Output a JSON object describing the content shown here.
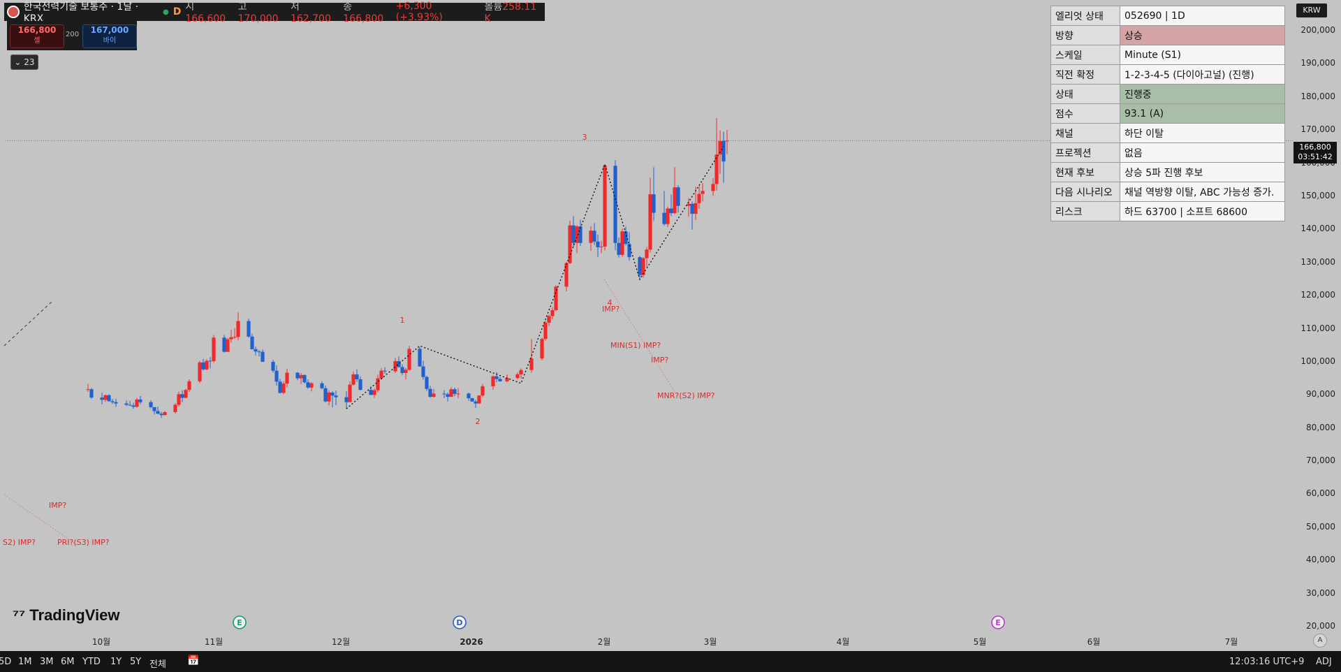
{
  "header": {
    "symbol": "한국전력기술 보통주 · 1날 · KRX",
    "interval_badge": "D",
    "open_label": "시",
    "open": "166,600",
    "high_label": "고",
    "high": "170,000",
    "low_label": "저",
    "low": "162,700",
    "close_label": "종",
    "close": "166,800",
    "change": "+6,300 (+3.93%)",
    "volume_label": "볼륨",
    "volume": "258.11 K"
  },
  "order_buttons": {
    "sell_price": "166,800",
    "sell_label": "셀",
    "qty": "200",
    "buy_price": "167,000",
    "buy_label": "바이"
  },
  "collapse": {
    "count": "23"
  },
  "info_table": [
    {
      "key": "엘리엇 상태",
      "value": "052690 | 1D",
      "tone": "plain"
    },
    {
      "key": "방향",
      "value": "상승",
      "tone": "red"
    },
    {
      "key": "스케일",
      "value": "Minute (S1)",
      "tone": "plain"
    },
    {
      "key": "직전 확정",
      "value": "1-2-3-4-5 (다이아고널) (진행)",
      "tone": "plain"
    },
    {
      "key": "상태",
      "value": "진행중",
      "tone": "green"
    },
    {
      "key": "점수",
      "value": "93.1 (A)",
      "tone": "green"
    },
    {
      "key": "채널",
      "value": "하단 이탈",
      "tone": "plain"
    },
    {
      "key": "프로젝션",
      "value": "없음",
      "tone": "plain"
    },
    {
      "key": "현재 후보",
      "value": "상승 5파 진행 후보",
      "tone": "plain"
    },
    {
      "key": "다음 시나리오",
      "value": "채널 역방향 이탈, ABC 가능성 증가.",
      "tone": "plain"
    },
    {
      "key": "리스크",
      "value": "하드 63700 | 소프트 68600",
      "tone": "plain"
    }
  ],
  "colors": {
    "up": "#f02a2a",
    "down": "#1f62cf",
    "tone_red": "#d4a3a5",
    "tone_green": "#a9bea6"
  },
  "price_scale": {
    "currency": "KRW",
    "ticks": [
      "200,000",
      "190,000",
      "180,000",
      "170,000",
      "160,000",
      "150,000",
      "140,000",
      "130,000",
      "120,000",
      "110,000",
      "100,000",
      "90,000",
      "80,000",
      "70,000",
      "60,000",
      "50,000",
      "40,000",
      "30,000",
      "20,000"
    ],
    "last_price": "166,800",
    "countdown": "03:51:42"
  },
  "time_axis": [
    "10월",
    "11월",
    "12월",
    "2026",
    "2월",
    "3월",
    "4월",
    "5월",
    "6월",
    "7월"
  ],
  "wave_labels": [
    "1",
    "2",
    "3",
    "4"
  ],
  "pattern_labels": [
    "IMP?",
    "MIN(S1) IMP?",
    "IMP?",
    "MNR?(S2) IMP?",
    "IMP?",
    "S2) IMP?",
    "PRI?(S3) IMP?"
  ],
  "event_markers": [
    "E",
    "D",
    "E"
  ],
  "brand": "TradingView",
  "bottom_bar": {
    "ranges": [
      "5D",
      "1M",
      "3M",
      "6M",
      "YTD",
      "1Y",
      "5Y",
      "전체"
    ],
    "clock": "12:03:16 UTC+9",
    "adj": "ADJ",
    "auto": "A"
  },
  "candles": [
    [
      "2025-08-28",
      91500,
      93300,
      90900,
      91700
    ],
    [
      "2025-08-29",
      91700,
      92100,
      88800,
      89200
    ],
    [
      "2025-09-01",
      89200,
      90700,
      87100,
      88500
    ],
    [
      "2025-09-02",
      88500,
      90100,
      87900,
      89900
    ],
    [
      "2025-09-03",
      89900,
      90200,
      87900,
      88100
    ],
    [
      "2025-09-04",
      88100,
      88800,
      87200,
      87800
    ],
    [
      "2025-09-05",
      87800,
      88800,
      86400,
      87400
    ],
    [
      "2025-09-08",
      87400,
      88300,
      86600,
      87000
    ],
    [
      "2025-09-09",
      87000,
      88200,
      86600,
      86800
    ],
    [
      "2025-09-10",
      86800,
      87600,
      85800,
      86400
    ],
    [
      "2025-09-11",
      86400,
      89100,
      86100,
      88600
    ],
    [
      "2025-09-12",
      88600,
      89700,
      87200,
      87800
    ],
    [
      "2025-09-15",
      87800,
      88400,
      85900,
      86300
    ],
    [
      "2025-09-16",
      86300,
      86300,
      84100,
      85100
    ],
    [
      "2025-09-17",
      85100,
      86500,
      84200,
      84300
    ],
    [
      "2025-09-18",
      84300,
      84900,
      83000,
      83900
    ],
    [
      "2025-09-19",
      83900,
      85100,
      83800,
      84800
    ],
    [
      "2025-09-22",
      84800,
      87500,
      84300,
      87000
    ],
    [
      "2025-09-23",
      87000,
      91000,
      86400,
      90200
    ],
    [
      "2025-09-24",
      90200,
      91400,
      87800,
      89100
    ],
    [
      "2025-09-25",
      89100,
      91800,
      88900,
      91500
    ],
    [
      "2025-09-26",
      91500,
      94700,
      90900,
      94100
    ],
    [
      "2025-09-29",
      94100,
      100300,
      93600,
      99800
    ],
    [
      "2025-09-30",
      99800,
      100900,
      97300,
      97700
    ],
    [
      "2025-10-01",
      97700,
      100800,
      97400,
      100300
    ],
    [
      "2025-10-02",
      100300,
      101400,
      98000,
      100200
    ],
    [
      "2025-10-03",
      100200,
      108100,
      99700,
      107300
    ],
    [
      "2025-10-06",
      107300,
      108100,
      102800,
      103000
    ],
    [
      "2025-10-07",
      103000,
      107200,
      102900,
      106800
    ],
    [
      "2025-10-08",
      106800,
      109600,
      105800,
      107400
    ],
    [
      "2025-10-09",
      107400,
      110100,
      106900,
      107500
    ],
    [
      "2025-10-10",
      107500,
      114900,
      106500,
      112300
    ],
    [
      "2025-10-13",
      112300,
      113000,
      107300,
      107600
    ],
    [
      "2025-10-14",
      107600,
      108500,
      103700,
      103800
    ],
    [
      "2025-10-15",
      103800,
      104600,
      101900,
      103100
    ],
    [
      "2025-10-16",
      103100,
      103600,
      101600,
      103000
    ],
    [
      "2025-10-17",
      103000,
      103700,
      99900,
      100000
    ],
    [
      "2025-10-20",
      100000,
      100600,
      96700,
      97300
    ],
    [
      "2025-10-21",
      97300,
      98900,
      92800,
      94000
    ],
    [
      "2025-10-22",
      94000,
      94800,
      90400,
      90600
    ],
    [
      "2025-10-23",
      90600,
      94100,
      90200,
      93400
    ],
    [
      "2025-10-24",
      93400,
      97900,
      92300,
      96700
    ],
    [
      "2025-10-27",
      96700,
      96900,
      94400,
      95000
    ],
    [
      "2025-10-28",
      95000,
      96600,
      93300,
      96000
    ],
    [
      "2025-10-29",
      96000,
      96200,
      93400,
      93800
    ],
    [
      "2025-10-30",
      93800,
      94700,
      91800,
      92200
    ],
    [
      "2025-10-31",
      92200,
      93800,
      91000,
      93500
    ],
    [
      "2025-11-03",
      93500,
      94100,
      91700,
      92000
    ],
    [
      "2025-11-04",
      92000,
      92800,
      87700,
      88000
    ],
    [
      "2025-11-05",
      88000,
      91400,
      86800,
      90700
    ],
    [
      "2025-11-06",
      90700,
      91100,
      86200,
      89800
    ],
    [
      "2025-11-07",
      89800,
      91300,
      86900,
      89300
    ],
    [
      "2025-11-10",
      89300,
      91100,
      85800,
      87800
    ],
    [
      "2025-11-11",
      87800,
      94100,
      87800,
      93100
    ],
    [
      "2025-11-12",
      93100,
      97100,
      92800,
      96200
    ],
    [
      "2025-11-13",
      96200,
      97700,
      93900,
      94700
    ],
    [
      "2025-11-14",
      94700,
      95600,
      91400,
      91500
    ],
    [
      "2025-11-17",
      91500,
      92600,
      89900,
      90000
    ],
    [
      "2025-11-18",
      90000,
      91900,
      89100,
      91400
    ],
    [
      "2025-11-19",
      91400,
      96100,
      90800,
      95000
    ],
    [
      "2025-11-20",
      95000,
      98100,
      94800,
      97300
    ],
    [
      "2025-11-21",
      97300,
      98400,
      96400,
      97100
    ],
    [
      "2025-11-24",
      97100,
      101100,
      96600,
      100200
    ],
    [
      "2025-11-25",
      100200,
      101600,
      98200,
      98400
    ],
    [
      "2025-11-26",
      98400,
      99200,
      96000,
      96600
    ],
    [
      "2025-11-27",
      96600,
      98100,
      94700,
      97600
    ],
    [
      "2025-11-28",
      97600,
      104800,
      97200,
      103900
    ],
    [
      "2025-12-01",
      103900,
      104500,
      98500,
      98600
    ],
    [
      "2025-12-02",
      98600,
      100300,
      94600,
      95400
    ],
    [
      "2025-12-03",
      95400,
      95800,
      91200,
      91800
    ],
    [
      "2025-12-04",
      91800,
      92700,
      89100,
      89400
    ],
    [
      "2025-12-05",
      89400,
      91800,
      89200,
      90400
    ],
    [
      "2025-12-08",
      90400,
      91400,
      89000,
      90200
    ],
    [
      "2025-12-09",
      90200,
      90700,
      88000,
      89400
    ],
    [
      "2025-12-10",
      89400,
      92300,
      89400,
      91700
    ],
    [
      "2025-12-11",
      91700,
      92200,
      89600,
      90300
    ],
    [
      "2025-12-12",
      90300,
      92100,
      89000,
      90400
    ],
    [
      "2025-12-15",
      90400,
      90700,
      88200,
      89000
    ],
    [
      "2025-12-16",
      89000,
      89100,
      87900,
      88000
    ],
    [
      "2025-12-17",
      88000,
      88500,
      86000,
      87400
    ],
    [
      "2025-12-18",
      87400,
      89900,
      87300,
      89800
    ],
    [
      "2025-12-19",
      89800,
      93300,
      89300,
      92600
    ],
    [
      "2025-12-22",
      92600,
      95900,
      91600,
      95600
    ],
    [
      "2025-12-23",
      95600,
      96900,
      93800,
      94800
    ],
    [
      "2025-12-24",
      94800,
      95400,
      94000,
      94100
    ],
    [
      "2025-12-26",
      94100,
      96200,
      93800,
      95100
    ],
    [
      "2025-12-29",
      95100,
      96800,
      94700,
      96200
    ],
    [
      "2025-12-30",
      96200,
      98000,
      94900,
      97500
    ],
    [
      "2026-01-02",
      97500,
      106900,
      96700,
      101000
    ],
    [
      "2026-01-05",
      101000,
      107300,
      100400,
      106900
    ],
    [
      "2026-01-06",
      106900,
      112300,
      106400,
      111800
    ],
    [
      "2026-01-07",
      111800,
      114300,
      110800,
      113800
    ],
    [
      "2026-01-08",
      113800,
      116500,
      112800,
      115600
    ],
    [
      "2026-01-09",
      115600,
      123100,
      115300,
      122700
    ],
    [
      "2026-01-12",
      122700,
      130200,
      121300,
      129800
    ],
    [
      "2026-01-13",
      129800,
      142600,
      129500,
      141200
    ],
    [
      "2026-01-14",
      141200,
      144000,
      134600,
      135900
    ],
    [
      "2026-01-15",
      135900,
      141300,
      132800,
      140900
    ],
    [
      "2026-01-16",
      140900,
      142900,
      135000,
      135900
    ],
    [
      "2026-01-19",
      135900,
      141000,
      133500,
      139600
    ],
    [
      "2026-01-20",
      139600,
      141900,
      135300,
      136300
    ],
    [
      "2026-01-21",
      136300,
      138500,
      131600,
      134600
    ],
    [
      "2026-01-22",
      134600,
      136600,
      132800,
      134800
    ],
    [
      "2026-01-23",
      134800,
      159700,
      133600,
      159200
    ],
    [
      "2026-01-26",
      159200,
      160900,
      133700,
      135900
    ],
    [
      "2026-01-27",
      135900,
      137600,
      131500,
      132300
    ],
    [
      "2026-01-28",
      132300,
      140200,
      131700,
      139400
    ],
    [
      "2026-01-29",
      139400,
      140800,
      135100,
      135600
    ],
    [
      "2026-01-30",
      135600,
      139100,
      130600,
      131600
    ],
    [
      "2026-02-02",
      131600,
      132000,
      124900,
      126200
    ],
    [
      "2026-02-03",
      126200,
      131600,
      125400,
      131300
    ],
    [
      "2026-02-04",
      131300,
      134700,
      128700,
      133900
    ],
    [
      "2026-02-05",
      133900,
      155600,
      133000,
      150600
    ],
    [
      "2026-02-06",
      150600,
      158800,
      142500,
      145000
    ],
    [
      "2026-02-09",
      145000,
      151600,
      141100,
      141600
    ],
    [
      "2026-02-10",
      141600,
      146900,
      140700,
      146300
    ],
    [
      "2026-02-11",
      146300,
      150600,
      144000,
      144900
    ],
    [
      "2026-02-12",
      144900,
      158800,
      144600,
      152700
    ],
    [
      "2026-02-13",
      152700,
      153300,
      145100,
      147100
    ],
    [
      "2026-02-16",
      147100,
      149400,
      143800,
      147700
    ],
    [
      "2026-02-17",
      147700,
      148400,
      139900,
      144700
    ],
    [
      "2026-02-18",
      144700,
      152900,
      142800,
      147900
    ],
    [
      "2026-02-19",
      147900,
      153100,
      146200,
      150700
    ],
    [
      "2026-02-20",
      150700,
      154000,
      148400,
      151600
    ],
    [
      "2026-02-23",
      151600,
      155500,
      150100,
      153700
    ],
    [
      "2026-02-24",
      153700,
      173600,
      151700,
      162600
    ],
    [
      "2026-02-25",
      162600,
      169900,
      156800,
      166700
    ],
    [
      "2026-02-26",
      166700,
      169500,
      154100,
      160500
    ],
    [
      "2026-02-27",
      166600,
      170000,
      162700,
      166800
    ]
  ]
}
